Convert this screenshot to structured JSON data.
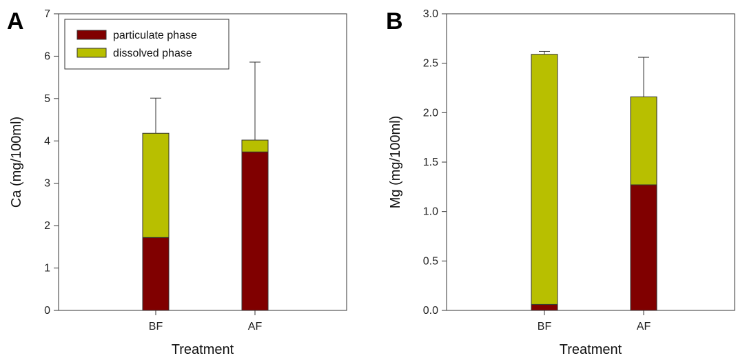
{
  "chart_data": [
    {
      "type": "bar",
      "stacked": true,
      "panel_letter": "A",
      "categories": [
        "BF",
        "AF"
      ],
      "series": [
        {
          "name": "particulate phase",
          "values": [
            1.72,
            3.74
          ],
          "color": "#800000"
        },
        {
          "name": "dissolved phase",
          "values": [
            2.46,
            0.28
          ],
          "color": "#b8bf00"
        }
      ],
      "error_bar_tops": [
        5.01,
        5.86
      ],
      "xlabel": "Treatment",
      "ylabel": "Ca (mg/100ml)",
      "ylim": [
        0,
        7
      ],
      "yticks": [
        0,
        1,
        2,
        3,
        4,
        5,
        6,
        7
      ],
      "ytick_labels": [
        "0",
        "1",
        "2",
        "3",
        "4",
        "5",
        "6",
        "7"
      ],
      "grid": false,
      "legend": "top-left"
    },
    {
      "type": "bar",
      "stacked": true,
      "panel_letter": "B",
      "categories": [
        "BF",
        "AF"
      ],
      "series": [
        {
          "name": "particulate phase",
          "values": [
            0.06,
            1.27
          ],
          "color": "#800000"
        },
        {
          "name": "dissolved phase",
          "values": [
            2.53,
            0.89
          ],
          "color": "#b8bf00"
        }
      ],
      "error_bar_tops": [
        2.62,
        2.56
      ],
      "xlabel": "Treatment",
      "ylabel": "Mg (mg/100ml)",
      "ylim": [
        0,
        3.0
      ],
      "yticks": [
        0,
        0.5,
        1.0,
        1.5,
        2.0,
        2.5,
        3.0
      ],
      "ytick_labels": [
        "0.0",
        "0.5",
        "1.0",
        "1.5",
        "2.0",
        "2.5",
        "3.0"
      ],
      "grid": false,
      "legend": "none"
    }
  ]
}
